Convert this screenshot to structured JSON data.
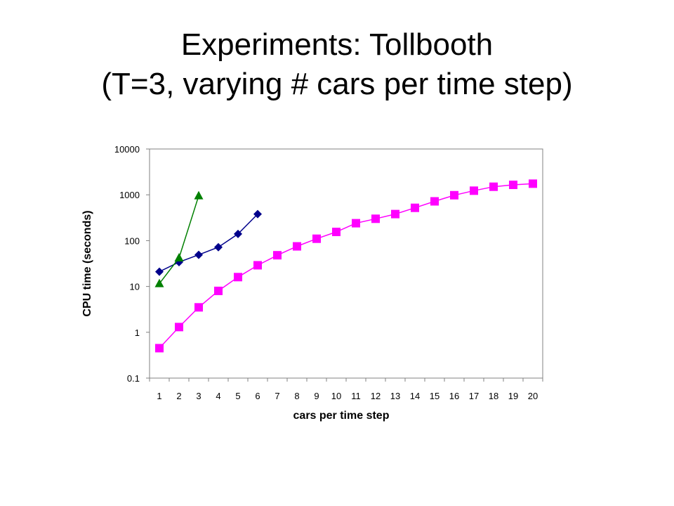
{
  "slide": {
    "title_line1": "Experiments: Tollbooth",
    "title_line2": "(T=3, varying # cars per time step)"
  },
  "chart_data": {
    "type": "line",
    "xlabel": "cars per time step",
    "ylabel": "CPU time (seconds)",
    "y_scale": "log",
    "ylim": [
      0.1,
      10000
    ],
    "y_ticks": [
      "0.1",
      "1",
      "10",
      "100",
      "1000",
      "10000"
    ],
    "x_ticks": [
      "1",
      "2",
      "3",
      "4",
      "5",
      "6",
      "7",
      "8",
      "9",
      "10",
      "11",
      "12",
      "13",
      "14",
      "15",
      "16",
      "17",
      "18",
      "19",
      "20"
    ],
    "grid": false,
    "legend": "none",
    "series": [
      {
        "color": "#ff00ff",
        "marker": "square",
        "x": [
          1,
          2,
          3,
          4,
          5,
          6,
          7,
          8,
          9,
          10,
          11,
          12,
          13,
          14,
          15,
          16,
          17,
          18,
          19,
          20
        ],
        "values": [
          0.45,
          1.3,
          3.5,
          8,
          16,
          29,
          48,
          75,
          110,
          155,
          240,
          300,
          380,
          520,
          720,
          980,
          1230,
          1500,
          1650,
          1750
        ]
      },
      {
        "color": "#00008b",
        "marker": "diamond",
        "x": [
          1,
          2,
          3,
          4,
          5,
          6
        ],
        "values": [
          21,
          34,
          49,
          72,
          140,
          380
        ]
      },
      {
        "color": "#008000",
        "marker": "triangle",
        "x": [
          1,
          2,
          3
        ],
        "values": [
          11.5,
          42,
          950
        ]
      }
    ]
  }
}
